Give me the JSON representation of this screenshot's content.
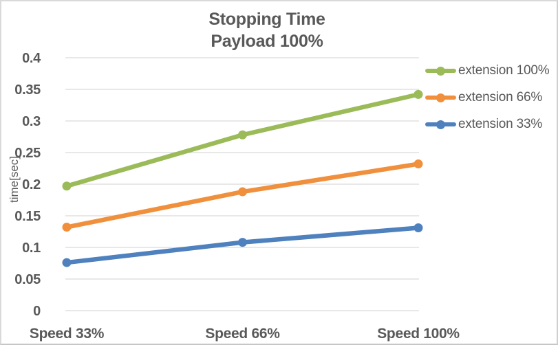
{
  "window": {
    "background": "#ffffff",
    "border_color": "#d9d9d9"
  },
  "chart_data": {
    "type": "line",
    "title": "Stopping Time",
    "subtitle": "Payload 100%",
    "ylabel": "time[sec]",
    "xlabel": "",
    "categories": [
      "Speed 33%",
      "Speed 66%",
      "Speed 100%"
    ],
    "series": [
      {
        "name": "extension 100%",
        "color": "#9BBB59",
        "values": [
          0.197,
          0.278,
          0.342
        ]
      },
      {
        "name": "extension 66%",
        "color": "#F0903D",
        "values": [
          0.132,
          0.188,
          0.232
        ]
      },
      {
        "name": "extension 33%",
        "color": "#4E81BD",
        "values": [
          0.076,
          0.108,
          0.131
        ]
      }
    ],
    "ylim": [
      0,
      0.4
    ],
    "ytick_step": 0.05,
    "yticks": [
      "0",
      "0.05",
      "0.1",
      "0.15",
      "0.2",
      "0.25",
      "0.3",
      "0.35",
      "0.4"
    ],
    "grid": "horizontal",
    "grid_color": "#D9D9D9",
    "text_color": "#595959",
    "legend_position": "right",
    "marker": "circle"
  }
}
